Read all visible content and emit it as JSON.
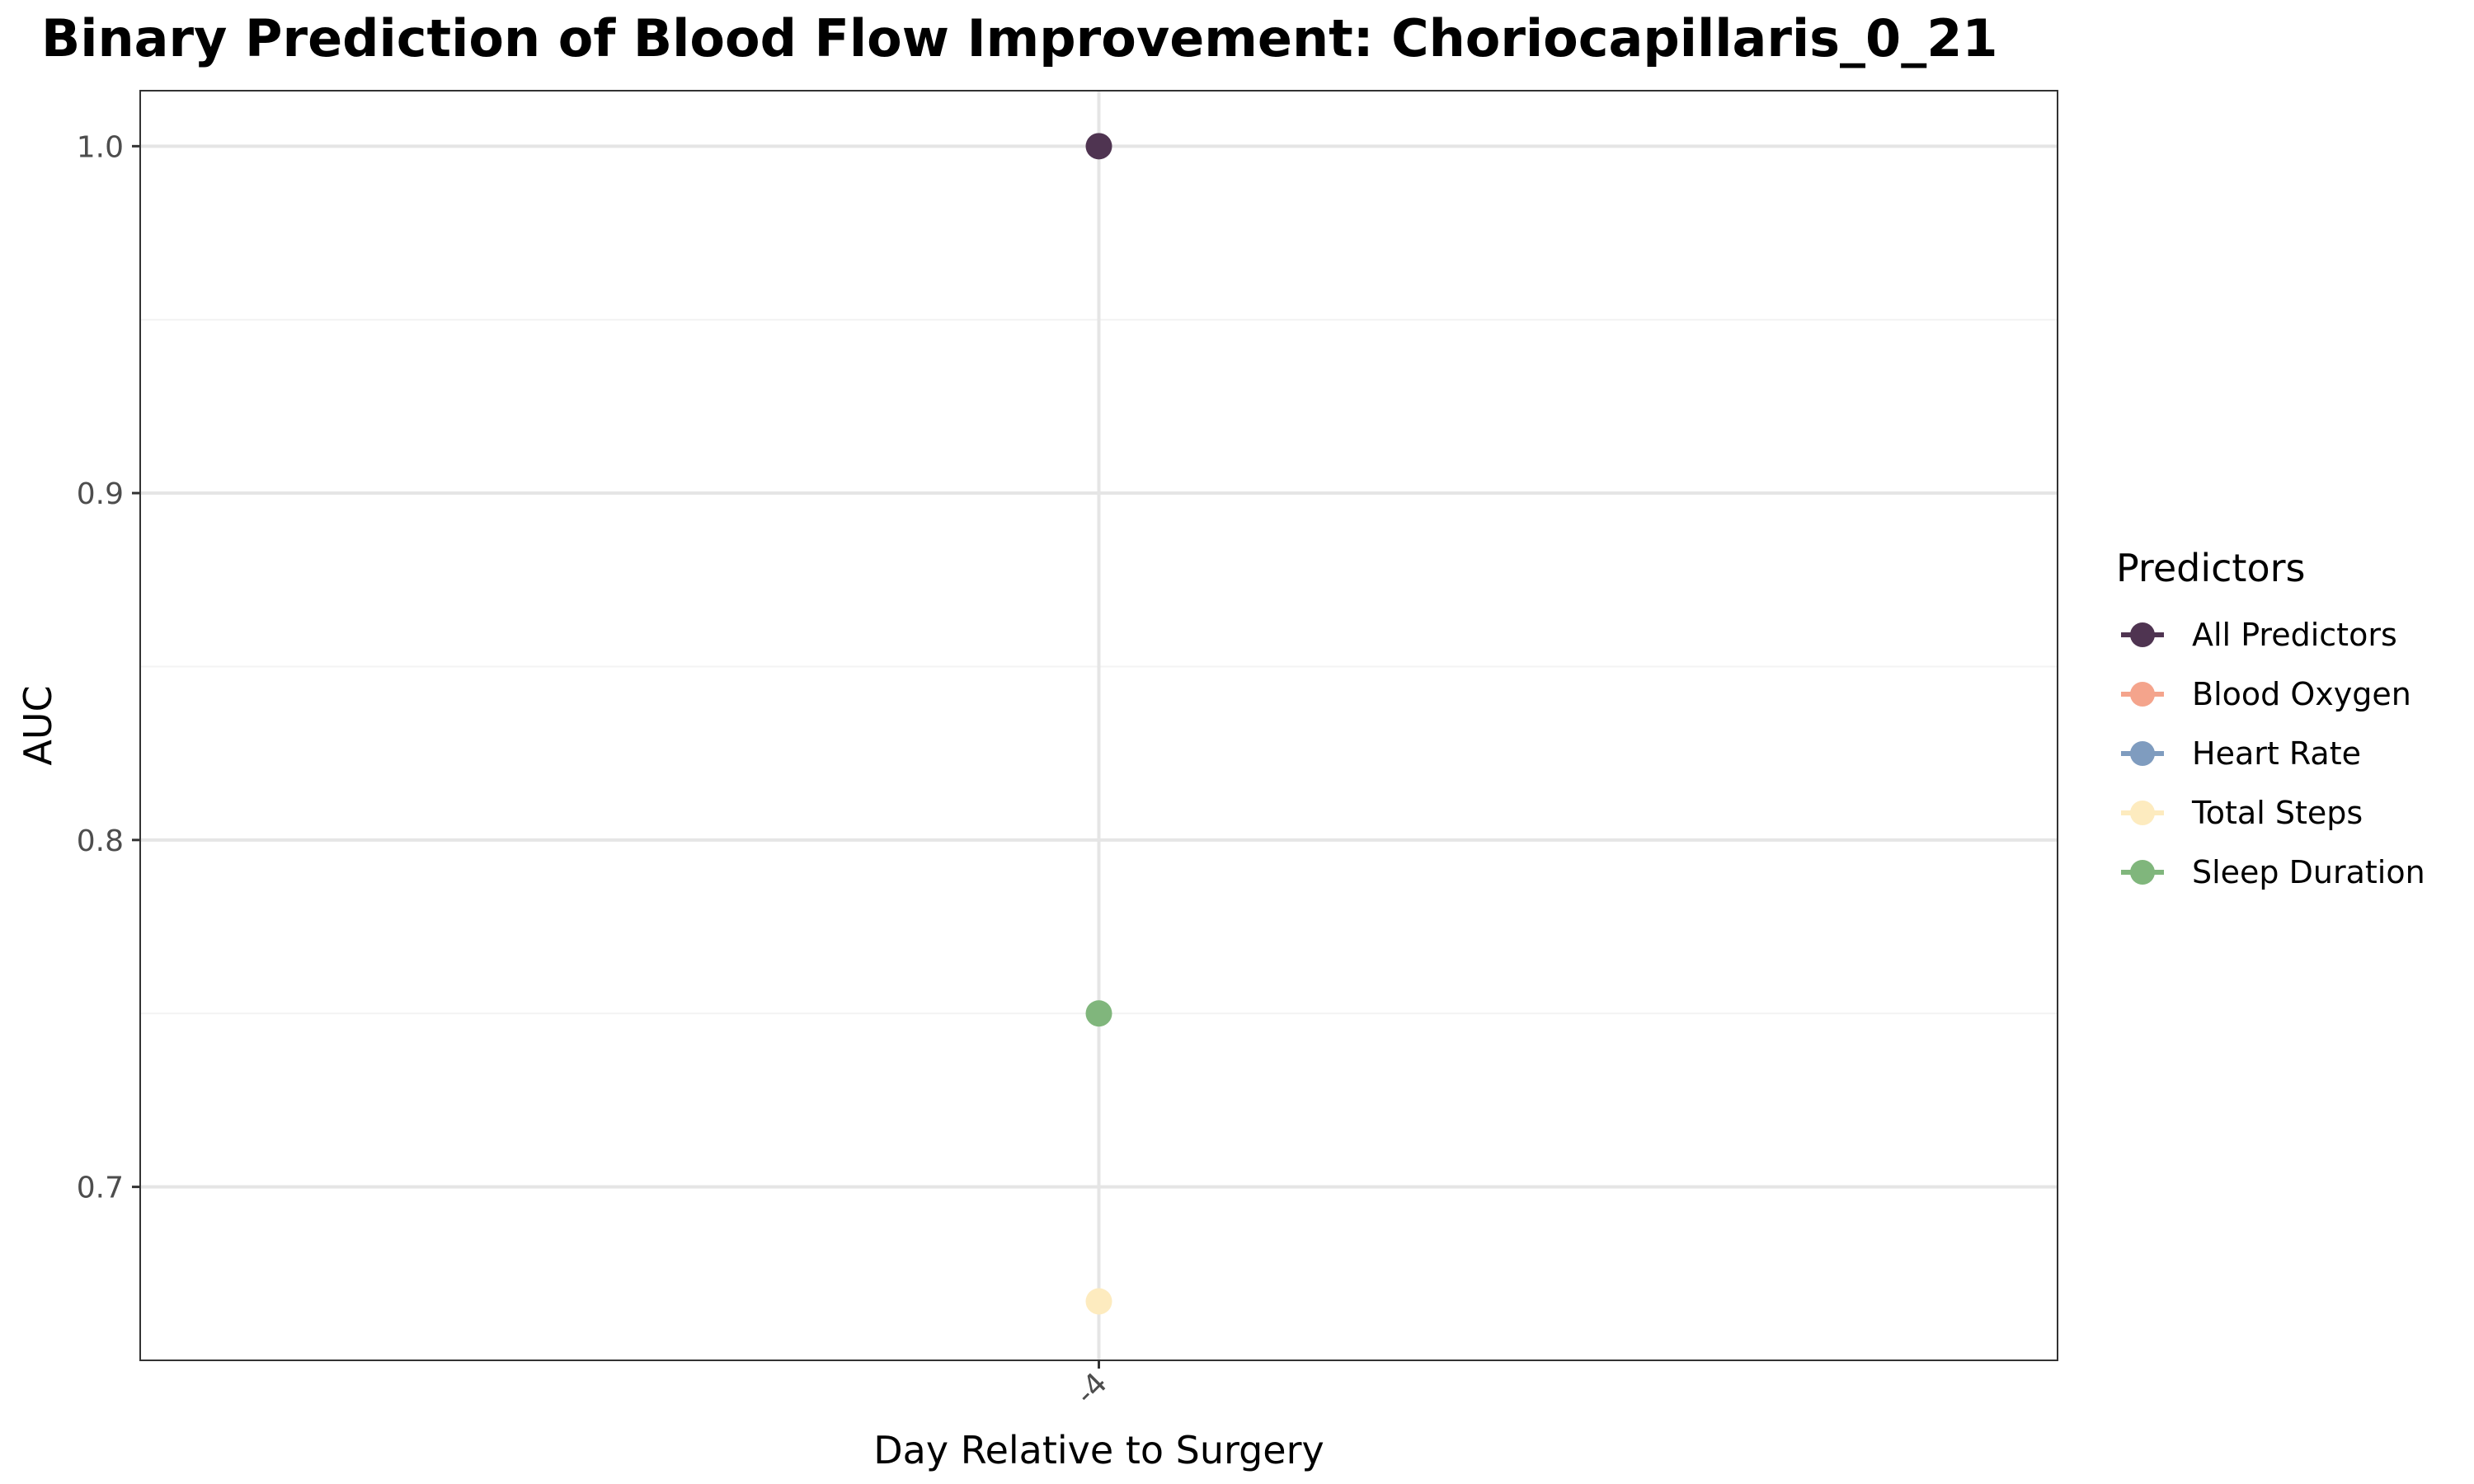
{
  "chart_data": {
    "type": "scatter",
    "title": "Binary Prediction of Blood Flow Improvement: Choriocapillaris_0_21",
    "xlabel": "Day Relative to Surgery",
    "ylabel": "AUC",
    "categories": [
      "-4"
    ],
    "ylim": [
      0.65,
      1.016
    ],
    "yticks": [
      0.7,
      0.8,
      0.9,
      1.0
    ],
    "ytick_labels": [
      "0.7",
      "0.8",
      "0.9",
      "1.0"
    ],
    "grid": true,
    "legend": {
      "title": "Predictors",
      "placement": "right"
    },
    "series": [
      {
        "name": "All Predictors",
        "color": "#4f3451",
        "values": [
          1.0
        ]
      },
      {
        "name": "Blood Oxygen",
        "color": "#f4a48c",
        "values": [
          null
        ]
      },
      {
        "name": "Heart Rate",
        "color": "#7f9cbf",
        "values": [
          null
        ]
      },
      {
        "name": "Total Steps",
        "color": "#fdebbf",
        "values": [
          0.667
        ]
      },
      {
        "name": "Sleep Duration",
        "color": "#80b67c",
        "values": [
          0.75
        ]
      }
    ]
  }
}
